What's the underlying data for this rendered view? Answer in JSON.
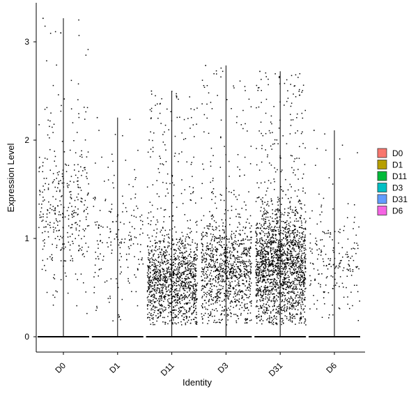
{
  "chart_data": {
    "type": "violin-jitter",
    "title": "",
    "xlabel": "Identity",
    "ylabel": "Expression Level",
    "ylim": [
      -0.15,
      3.35
    ],
    "yticks": [
      0,
      1,
      2,
      3
    ],
    "grid": false,
    "legend_position": "right",
    "categories": [
      "D0",
      "D1",
      "D11",
      "D3",
      "D31",
      "D6"
    ],
    "series": [
      {
        "name": "D0",
        "color": "#F8766D",
        "max": 3.24,
        "point_count": 360,
        "mean_nonzero": 1.25,
        "spread": 0.7
      },
      {
        "name": "D1",
        "color": "#B79F00",
        "max": 2.23,
        "point_count": 190,
        "mean_nonzero": 0.9,
        "spread": 0.6
      },
      {
        "name": "D11",
        "color": "#00BA38",
        "max": 2.5,
        "point_count": 1300,
        "mean_nonzero": 0.55,
        "spread": 0.45
      },
      {
        "name": "D3",
        "color": "#00BFC4",
        "max": 2.76,
        "point_count": 1050,
        "mean_nonzero": 0.65,
        "spread": 0.5
      },
      {
        "name": "D31",
        "color": "#619CFF",
        "max": 2.7,
        "point_count": 1900,
        "mean_nonzero": 0.7,
        "spread": 0.55
      },
      {
        "name": "D6",
        "color": "#F564E3",
        "max": 2.1,
        "point_count": 200,
        "mean_nonzero": 0.7,
        "spread": 0.5
      }
    ]
  }
}
